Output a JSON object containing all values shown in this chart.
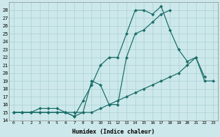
{
  "xlabel": "Humidex (Indice chaleur)",
  "bg_color": "#cce8ea",
  "line_color": "#1a6e6a",
  "grid_color": "#aacfd2",
  "xlim": [
    -0.5,
    23.5
  ],
  "ylim": [
    14,
    29
  ],
  "yticks": [
    14,
    15,
    16,
    17,
    18,
    19,
    20,
    21,
    22,
    23,
    24,
    25,
    26,
    27,
    28
  ],
  "xticks": [
    0,
    1,
    2,
    3,
    4,
    5,
    6,
    7,
    8,
    9,
    10,
    11,
    12,
    13,
    14,
    15,
    16,
    17,
    18,
    19,
    20,
    21,
    22,
    23
  ],
  "curve1_x": [
    0,
    1,
    2,
    3,
    4,
    5,
    6,
    7,
    8,
    9,
    10,
    11,
    12,
    13,
    14,
    15,
    16,
    17,
    18
  ],
  "curve1_y": [
    15,
    15,
    15,
    15,
    15,
    15,
    15,
    14.5,
    15,
    19,
    18.5,
    16,
    16,
    22,
    25,
    25.5,
    26.5,
    27.5,
    28
  ],
  "curve2_x": [
    0,
    1,
    2,
    3,
    4,
    5,
    6,
    7,
    8,
    9,
    10,
    11,
    12,
    13,
    14,
    15,
    16,
    17,
    18,
    19,
    20,
    21,
    22
  ],
  "curve2_y": [
    15,
    15,
    15,
    15.5,
    15.5,
    15.5,
    15,
    14.5,
    16.5,
    18.5,
    21,
    22,
    22,
    25,
    28,
    28,
    27.5,
    28.5,
    25.5,
    23,
    21.5,
    22,
    19.5
  ],
  "curve3_x": [
    0,
    1,
    2,
    3,
    4,
    5,
    6,
    7,
    8,
    9,
    10,
    11,
    12,
    13,
    14,
    15,
    16,
    17,
    18,
    19,
    20,
    21,
    22,
    23
  ],
  "curve3_y": [
    15,
    15,
    15,
    15,
    15,
    15,
    15,
    15,
    15,
    15,
    15.5,
    16,
    16.5,
    17,
    17.5,
    18,
    18.5,
    19,
    19.5,
    20,
    21,
    22,
    19,
    19
  ]
}
